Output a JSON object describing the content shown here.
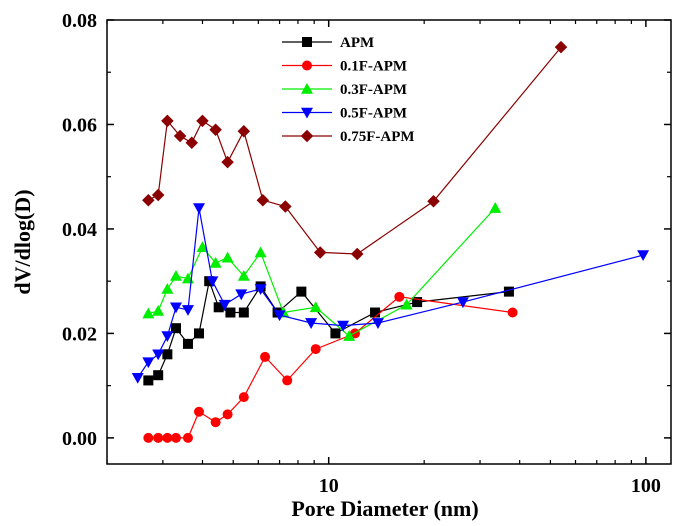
{
  "chart_data": {
    "type": "line",
    "title": "",
    "xlabel": "Pore Diameter (nm)",
    "ylabel": "dV/dlog(D)",
    "xscale": "log",
    "xlim": [
      2.0,
      120
    ],
    "ylim": [
      -0.005,
      0.08
    ],
    "xticks": [
      10,
      100
    ],
    "xtick_labels": [
      "10",
      "100"
    ],
    "yticks": [
      0.0,
      0.02,
      0.04,
      0.06,
      0.08
    ],
    "ytick_labels": [
      "0.00",
      "0.02",
      "0.04",
      "0.06",
      "0.08"
    ],
    "grid": false,
    "legend_position": "top-center",
    "series": [
      {
        "name": "APM",
        "color": "#000000",
        "marker": "square",
        "x": [
          2.7,
          2.9,
          3.1,
          3.3,
          3.6,
          3.9,
          4.2,
          4.5,
          4.9,
          5.4,
          6.1,
          6.9,
          8.2,
          10.5,
          14.0,
          19.0,
          37.0
        ],
        "y": [
          0.011,
          0.012,
          0.016,
          0.021,
          0.018,
          0.02,
          0.03,
          0.025,
          0.024,
          0.024,
          0.029,
          0.024,
          0.028,
          0.02,
          0.024,
          0.026,
          0.028
        ]
      },
      {
        "name": "0.1F-APM",
        "color": "#ff0000",
        "marker": "circle",
        "x": [
          2.7,
          2.9,
          3.1,
          3.3,
          3.6,
          3.9,
          4.4,
          4.8,
          5.4,
          6.3,
          7.4,
          9.1,
          12.1,
          16.7,
          38.0
        ],
        "y": [
          0.0,
          0.0,
          0.0,
          0.0,
          0.0,
          0.005,
          0.003,
          0.0045,
          0.0078,
          0.0155,
          0.011,
          0.017,
          0.02,
          0.027,
          0.024
        ]
      },
      {
        "name": "0.3F-APM",
        "color": "#00ee00",
        "marker": "triangle-up",
        "x": [
          2.7,
          2.9,
          3.1,
          3.3,
          3.6,
          4.0,
          4.4,
          4.8,
          5.4,
          6.1,
          7.2,
          9.1,
          11.6,
          17.6,
          33.5
        ],
        "y": [
          0.0238,
          0.0243,
          0.0285,
          0.031,
          0.0305,
          0.0365,
          0.0335,
          0.0345,
          0.031,
          0.0355,
          0.024,
          0.025,
          0.0195,
          0.0255,
          0.044
        ]
      },
      {
        "name": "0.5F-APM",
        "color": "#0000ff",
        "marker": "triangle-down",
        "x": [
          2.5,
          2.7,
          2.9,
          3.1,
          3.3,
          3.6,
          3.9,
          4.3,
          4.7,
          5.3,
          6.1,
          7.0,
          8.8,
          11.1,
          14.3,
          26.5,
          98.0
        ],
        "y": [
          0.0115,
          0.0145,
          0.016,
          0.0195,
          0.025,
          0.0245,
          0.044,
          0.03,
          0.0255,
          0.0275,
          0.0285,
          0.0235,
          0.022,
          0.0215,
          0.022,
          0.026,
          0.035
        ]
      },
      {
        "name": "0.75F-APM",
        "color": "#8b0000",
        "marker": "diamond",
        "x": [
          2.7,
          2.9,
          3.1,
          3.4,
          3.7,
          4.0,
          4.4,
          4.8,
          5.4,
          6.2,
          7.3,
          9.4,
          12.3,
          21.4,
          54.0
        ],
        "y": [
          0.0455,
          0.0465,
          0.0607,
          0.0578,
          0.0565,
          0.0607,
          0.059,
          0.0528,
          0.0587,
          0.0455,
          0.0443,
          0.0355,
          0.0352,
          0.0453,
          0.0748
        ]
      }
    ]
  }
}
